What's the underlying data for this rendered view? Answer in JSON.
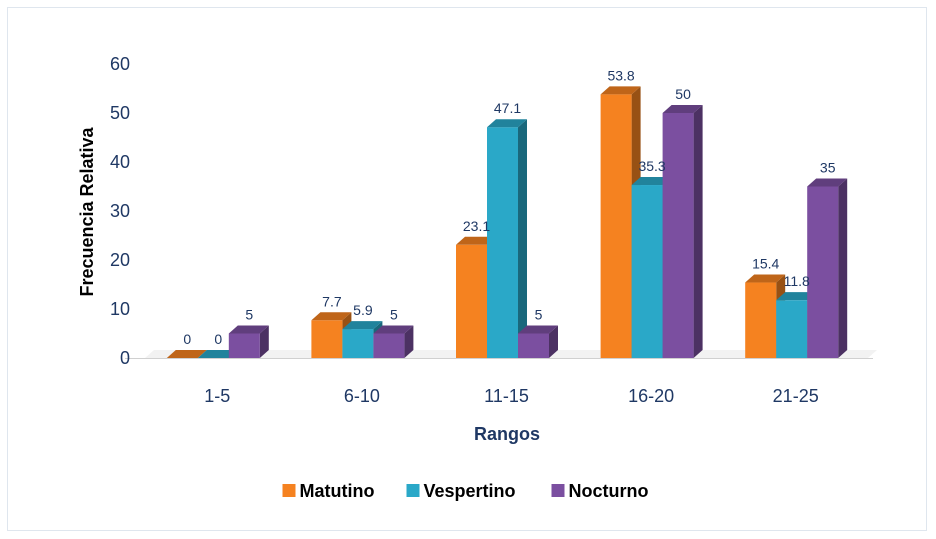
{
  "chart_data": {
    "type": "bar",
    "xlabel": "Rangos",
    "ylabel": "Frecuencia Relativa",
    "ylim": [
      0,
      60
    ],
    "yticks": [
      0,
      10,
      20,
      30,
      40,
      50,
      60
    ],
    "grid": false,
    "legend_position": "bottom",
    "categories": [
      "1-5",
      "6-10",
      "11-15",
      "16-20",
      "21-25"
    ],
    "series": [
      {
        "name": "Matutino",
        "color": "#f58220",
        "values": [
          0,
          7.7,
          23.1,
          53.8,
          15.4
        ],
        "labels": [
          "0",
          "7.7",
          "23.1",
          "53.8",
          "15.4"
        ]
      },
      {
        "name": "Vespertino",
        "color": "#2aa8c8",
        "values": [
          0,
          5.9,
          47.1,
          35.3,
          11.8
        ],
        "labels": [
          "0",
          "5.9",
          "47.1",
          "35.3",
          "11.8"
        ]
      },
      {
        "name": "Nocturno",
        "color": "#7b4fa0",
        "values": [
          5,
          5,
          5,
          50,
          35
        ],
        "labels": [
          "5",
          "5",
          "5",
          "50",
          "35"
        ]
      }
    ]
  }
}
